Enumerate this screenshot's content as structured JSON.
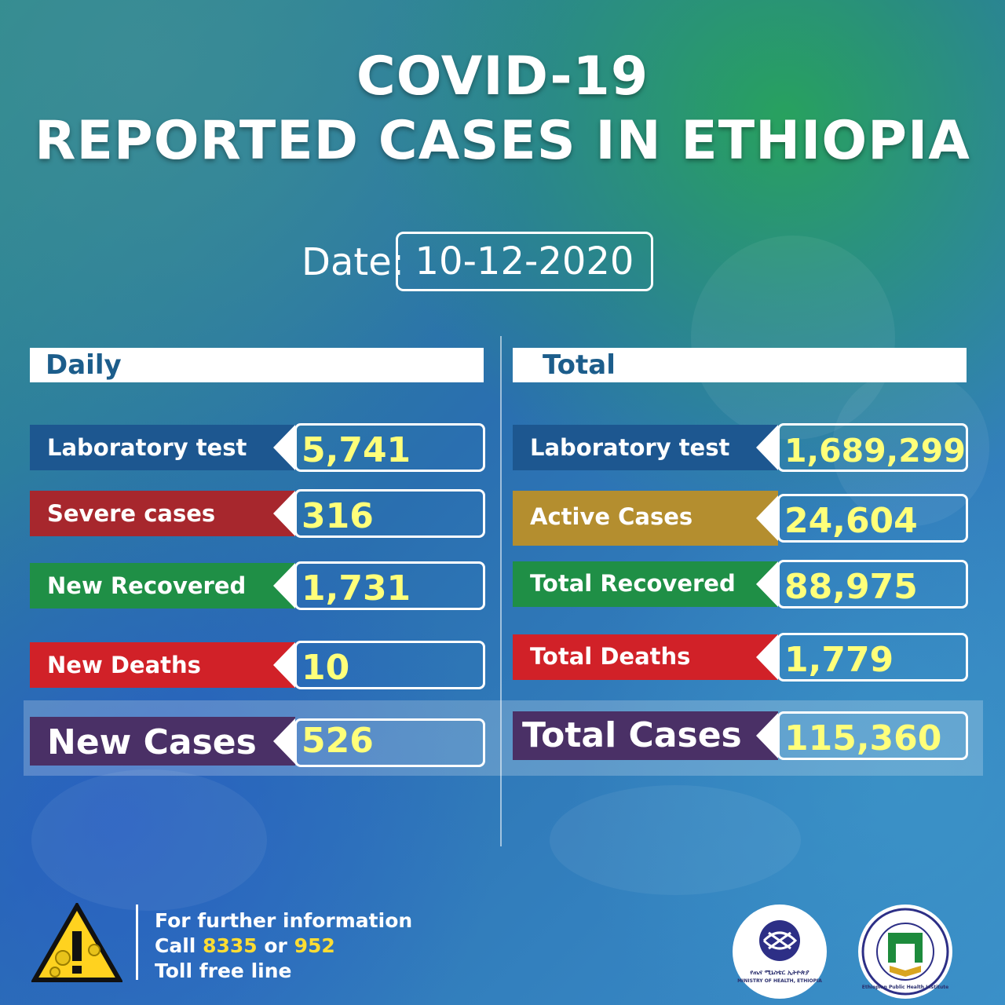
{
  "header": {
    "title_line1": "COVID-19",
    "title_line2": "REPORTED CASES IN ETHIOPIA",
    "date_label": "Date:",
    "date_value": "10-12-2020"
  },
  "daily": {
    "heading": "Daily",
    "rows": [
      {
        "label": "Laboratory test",
        "value": "5,741",
        "color": "#1d5790"
      },
      {
        "label": "Severe cases",
        "value": "316",
        "color": "#a7272d"
      },
      {
        "label": "New Recovered",
        "value": "1,731",
        "color": "#1f8f46"
      },
      {
        "label": "New Deaths",
        "value": "10",
        "color": "#d12128"
      }
    ],
    "summary": {
      "label": "New Cases",
      "value": "526",
      "color": "#4a3066"
    }
  },
  "total": {
    "heading": "Total",
    "rows": [
      {
        "label": "Laboratory test",
        "value": "1,689,299",
        "color": "#1d5790"
      },
      {
        "label": "Active Cases",
        "value": "24,604",
        "color": "#b48e2f"
      },
      {
        "label": "Total Recovered",
        "value": "88,975",
        "color": "#1f8f46"
      },
      {
        "label": "Total Deaths",
        "value": "1,779",
        "color": "#d12128"
      }
    ],
    "summary": {
      "label": "Total Cases",
      "value": "115,360",
      "color": "#4a3066"
    }
  },
  "footer": {
    "line1": "For further information",
    "line2_prefix": "Call ",
    "line2_num1": "8335",
    "line2_mid": " or ",
    "line2_num2": "952",
    "line3": "Toll free line",
    "icons": [
      "warning-virus-icon",
      "ministry-of-health-logo",
      "ephi-logo"
    ],
    "moh_logo_text": "የጤና ሚኒስቴር ኢትዮጵያ",
    "moh_logo_subtext": "MINISTRY OF HEALTH, ETHIOPIA",
    "ephi_logo_text": "Ethiopian Public Health Institute"
  }
}
